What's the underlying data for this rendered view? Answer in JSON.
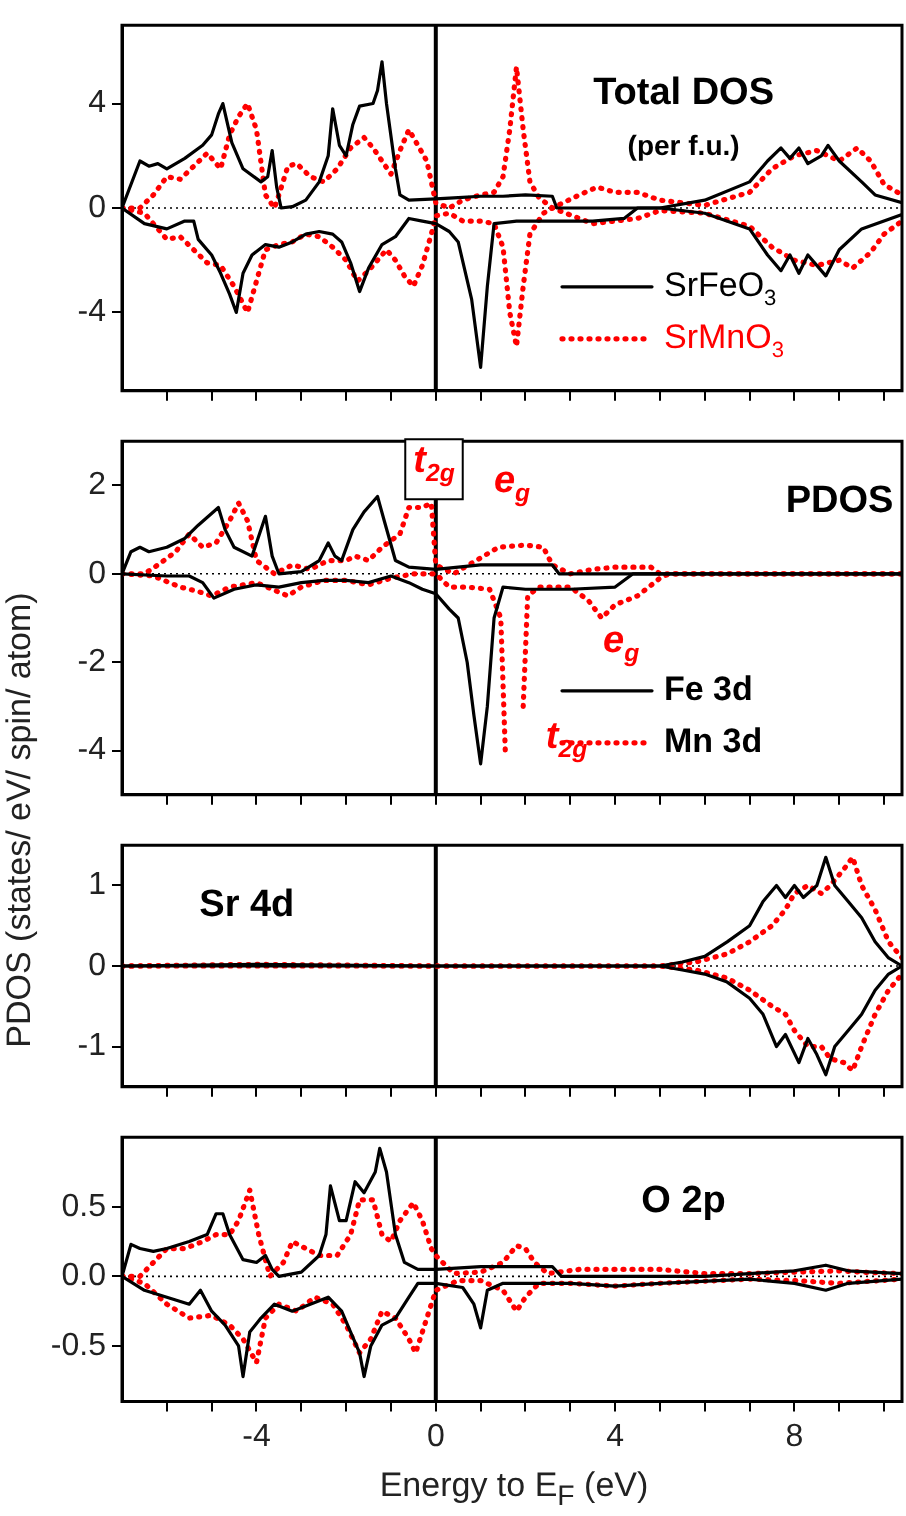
{
  "chart_data": [
    {
      "type": "line",
      "title": "Total DOS",
      "subtitle": "(per f.u.)",
      "xlim": [
        -7,
        10.4
      ],
      "ylim": [
        -7,
        7
      ],
      "yticks": [
        -4,
        0,
        4
      ],
      "xticks": [
        {
          "value": -6,
          "label": null
        },
        {
          "value": -5,
          "label": null
        },
        -4,
        {
          "value": -3,
          "label": null
        },
        {
          "value": -2,
          "label": null
        },
        {
          "value": -1,
          "label": null
        },
        0,
        {
          "value": 1,
          "label": null
        },
        {
          "value": 2,
          "label": null
        },
        {
          "value": 3,
          "label": null
        },
        4,
        {
          "value": 5,
          "label": null
        },
        {
          "value": 6,
          "label": null
        },
        {
          "value": 7,
          "label": null
        },
        8,
        {
          "value": 9,
          "label": null
        },
        {
          "value": 10,
          "label": null
        }
      ],
      "tick_labels": "y",
      "legend": "bottom right",
      "grid": false,
      "ref_lines": [
        {
          "axis": "x",
          "value": 0,
          "color": "#000000",
          "line_style": "solid"
        },
        {
          "axis": "y",
          "value": 0,
          "color": "#000000",
          "line_style": "dotted"
        }
      ],
      "series": [
        {
          "name": "SrFeO$_{3}$",
          "color": "#000000",
          "line_style": "solid",
          "x": [
            -7,
            -6.6,
            -6.4,
            -6.2,
            -6,
            -5.6,
            -5.2,
            -5,
            -4.85,
            -4.75,
            -4.55,
            -4.3,
            -3.9,
            -3.75,
            -3.65,
            -3.55,
            -3.45,
            -3.2,
            -2.9,
            -2.6,
            -2.4,
            -2.3,
            -2.15,
            -2,
            -1.85,
            -1.7,
            -1.4,
            -1.3,
            -1.2,
            -1.1,
            -0.9,
            -0.8,
            -0.6,
            0,
            0.5,
            1,
            1.5,
            2,
            2.6,
            2.7,
            3.5,
            4,
            5,
            6,
            7,
            7.4,
            7.7,
            7.9,
            8.1,
            8.3,
            8.6,
            8.75,
            9,
            9.5,
            9.8,
            10.4
          ],
          "values": [
            0,
            1.8,
            1.6,
            1.7,
            1.5,
            1.9,
            2.4,
            2.8,
            3.6,
            4,
            2.5,
            1.5,
            1,
            1.2,
            2.2,
            0.8,
            0,
            0.05,
            0.3,
            1,
            2,
            3.8,
            2.4,
            2,
            3.2,
            3.9,
            4,
            4.5,
            5.6,
            4,
            1.5,
            0.5,
            0.3,
            0.35,
            0.4,
            0.45,
            0.45,
            0.5,
            0.45,
            0,
            0,
            0,
            0,
            0.3,
            1,
            1.8,
            2.3,
            1.9,
            2.3,
            1.7,
            2,
            2.4,
            1.8,
            1,
            0.5,
            0.2
          ]
        },
        {
          "color": "#000000",
          "line_style": "solid",
          "x": [
            -7,
            -6.5,
            -6,
            -5.6,
            -5.4,
            -5.3,
            -5,
            -4.8,
            -4.6,
            -4.45,
            -4.3,
            -4.1,
            -3.8,
            -3.5,
            -3.2,
            -2.9,
            -2.6,
            -2.3,
            -2.1,
            -1.9,
            -1.7,
            -1.5,
            -1.2,
            -0.9,
            -0.6,
            -0.3,
            0,
            0.3,
            0.5,
            0.8,
            1,
            1.15,
            1.3,
            1.8,
            2.5,
            3.5,
            4.2,
            4.5,
            5,
            6,
            7,
            7.4,
            7.7,
            7.9,
            8.1,
            8.3,
            8.7,
            9,
            9.5,
            10.4
          ],
          "values": [
            0,
            -0.6,
            -0.8,
            -0.5,
            -0.5,
            -1.2,
            -1.8,
            -2.5,
            -3.3,
            -4,
            -2.5,
            -1.8,
            -1.4,
            -1.5,
            -1.3,
            -1,
            -0.9,
            -1,
            -1.3,
            -2.1,
            -3.2,
            -2.3,
            -1.4,
            -1.1,
            -0.4,
            -0.5,
            -0.6,
            -0.9,
            -1.3,
            -3.5,
            -6.1,
            -3,
            -0.6,
            -0.5,
            -0.5,
            -0.5,
            -0.4,
            0,
            0,
            -0.2,
            -0.8,
            -1.8,
            -2.4,
            -1.8,
            -2.5,
            -1.8,
            -2.6,
            -1.6,
            -0.8,
            -0.25
          ]
        },
        {
          "name": "SrMnO$_{3}$",
          "color": "#ff0000",
          "line_style": "dotted",
          "x": [
            -7,
            -6.6,
            -6.3,
            -6,
            -5.7,
            -5.4,
            -5.1,
            -4.8,
            -4.6,
            -4.4,
            -4.2,
            -4,
            -3.8,
            -3.6,
            -3.5,
            -3.3,
            -3.1,
            -2.8,
            -2.5,
            -2.2,
            -1.9,
            -1.6,
            -1.4,
            -1.2,
            -1,
            -0.8,
            -0.6,
            -0.4,
            -0.2,
            0,
            0.3,
            0.6,
            1,
            1.3,
            1.5,
            1.65,
            1.8,
            1.95,
            2.1,
            2.3,
            2.6,
            3.2,
            3.6,
            4,
            4.5,
            5,
            6,
            7,
            7.5,
            8,
            8.5,
            9,
            9.4,
            9.7,
            10,
            10.4
          ],
          "values": [
            0,
            0,
            0.5,
            1.2,
            1.1,
            1.6,
            2.1,
            1.5,
            2.8,
            3.5,
            4,
            3,
            0.5,
            0,
            0.5,
            1.6,
            1.7,
            1.2,
            1,
            1.5,
            2.3,
            2.7,
            2.3,
            1.8,
            1.3,
            2.2,
            3,
            2.4,
            1.8,
            0.2,
            0,
            0.3,
            0.5,
            0.6,
            1.2,
            3,
            5.4,
            3,
            1,
            0.4,
            0,
            0.5,
            0.8,
            0.6,
            0.6,
            0.3,
            0.1,
            0.6,
            1.5,
            2,
            2.2,
            1.8,
            2.3,
            1.8,
            0.9,
            0.5
          ]
        },
        {
          "color": "#ff0000",
          "line_style": "dotted",
          "x": [
            -7,
            -6.5,
            -6,
            -5.7,
            -5.4,
            -5.1,
            -4.8,
            -4.5,
            -4.2,
            -4,
            -3.8,
            -3.5,
            -3.2,
            -2.9,
            -2.6,
            -2.3,
            -2,
            -1.75,
            -1.5,
            -1.3,
            -1.1,
            -0.9,
            -0.7,
            -0.5,
            -0.3,
            -0.1,
            0,
            0.3,
            0.6,
            1,
            1.3,
            1.5,
            1.65,
            1.8,
            1.95,
            2.1,
            2.4,
            2.6,
            3.5,
            4,
            4.5,
            5,
            6,
            7,
            7.5,
            8,
            8.5,
            9,
            9.3,
            9.7,
            10,
            10.4
          ],
          "values": [
            0,
            -0.2,
            -1.2,
            -1.1,
            -1.6,
            -2.1,
            -2.2,
            -3,
            -4,
            -2.8,
            -1.6,
            -1.4,
            -1.3,
            -1,
            -1.1,
            -1.5,
            -2,
            -2.8,
            -2.4,
            -2,
            -1.6,
            -2,
            -2.6,
            -3,
            -2.2,
            -1,
            -0.3,
            -0.2,
            -0.5,
            -0.5,
            -0.6,
            -1.5,
            -4,
            -5.3,
            -3,
            -1,
            -0.2,
            0,
            -0.6,
            -0.5,
            -0.4,
            -0.1,
            -0.2,
            -0.7,
            -1.5,
            -2,
            -2.2,
            -2,
            -2.3,
            -1.7,
            -1,
            -0.5
          ]
        }
      ]
    },
    {
      "type": "line",
      "title": "PDOS",
      "ylabel": "PDOS (states/ eV/ spin/ atom)",
      "xlim": [
        -7,
        10.4
      ],
      "ylim": [
        -5,
        3
      ],
      "yticks": [
        -4,
        -2,
        0,
        2
      ],
      "xticks": [
        {
          "value": -6,
          "label": null
        },
        {
          "value": -5,
          "label": null
        },
        -4,
        {
          "value": -3,
          "label": null
        },
        {
          "value": -2,
          "label": null
        },
        {
          "value": -1,
          "label": null
        },
        0,
        {
          "value": 1,
          "label": null
        },
        {
          "value": 2,
          "label": null
        },
        {
          "value": 3,
          "label": null
        },
        4,
        {
          "value": 5,
          "label": null
        },
        {
          "value": 6,
          "label": null
        },
        {
          "value": 7,
          "label": null
        },
        8,
        {
          "value": 9,
          "label": null
        },
        {
          "value": 10,
          "label": null
        }
      ],
      "tick_labels": "y",
      "legend": "bottom right",
      "grid": false,
      "annotations": [
        "t$_{2g}$",
        "e$_{g}$",
        "e$_{g}$",
        "t$_{2g}$"
      ],
      "ref_lines": [
        {
          "axis": "x",
          "value": 0,
          "color": "#000000",
          "line_style": "solid"
        },
        {
          "axis": "y",
          "value": 0,
          "color": "#000000",
          "line_style": "dotted"
        }
      ],
      "series": [
        {
          "name": "Fe 3d",
          "color": "#000000",
          "line_style": "solid",
          "x": [
            -7,
            -6.8,
            -6.6,
            -6.4,
            -6,
            -5.6,
            -5.3,
            -4.85,
            -4.7,
            -4.5,
            -4.1,
            -3.8,
            -3.65,
            -3.5,
            -3,
            -2.6,
            -2.4,
            -2.25,
            -2.1,
            -1.85,
            -1.6,
            -1.3,
            -1.15,
            -0.9,
            -0.6,
            0,
            1,
            2,
            2.6,
            2.75,
            4,
            10.4
          ],
          "values": [
            0,
            0.5,
            0.6,
            0.5,
            0.6,
            0.8,
            1.1,
            1.5,
            1,
            0.6,
            0.4,
            1.3,
            0.4,
            0,
            0.05,
            0.3,
            0.7,
            0.4,
            0.3,
            1,
            1.4,
            1.75,
            1.2,
            0.3,
            0.15,
            0.1,
            0.2,
            0.2,
            0.2,
            0,
            0,
            0
          ]
        },
        {
          "color": "#000000",
          "line_style": "solid",
          "x": [
            -7,
            -6,
            -5.5,
            -5.2,
            -4.95,
            -4.5,
            -4,
            -3.5,
            -3,
            -2.5,
            -2,
            -1.5,
            -1,
            -0.6,
            -0.3,
            0,
            0.3,
            0.5,
            0.7,
            0.85,
            1,
            1.15,
            1.3,
            1.5,
            2,
            3,
            4,
            4.4,
            10.4
          ],
          "values": [
            0,
            -0.05,
            -0.05,
            -0.2,
            -0.55,
            -0.35,
            -0.25,
            -0.3,
            -0.2,
            -0.15,
            -0.15,
            -0.2,
            -0.05,
            -0.2,
            -0.35,
            -0.45,
            -0.8,
            -1,
            -2,
            -3.2,
            -4.3,
            -3,
            -1,
            -0.3,
            -0.35,
            -0.35,
            -0.3,
            0,
            0
          ]
        },
        {
          "name": "Mn 3d",
          "color": "#ff0000",
          "line_style": "dotted",
          "x": [
            -7,
            -6.5,
            -6.2,
            -5.8,
            -5.5,
            -5.2,
            -4.9,
            -4.6,
            -4.4,
            -4.2,
            -4,
            -3.6,
            -3.2,
            -2.8,
            -2.4,
            -2,
            -1.8,
            -1.5,
            -1.2,
            -0.8,
            -0.6,
            -0.3,
            -0.1,
            0,
            0.4,
            0.9,
            1.4,
            2,
            2.4,
            2.6,
            3,
            3.5,
            4,
            4.8,
            5,
            10.4
          ],
          "values": [
            0,
            0,
            0.2,
            0.5,
            0.9,
            0.6,
            0.7,
            1.2,
            1.6,
            1.2,
            0.3,
            0,
            0.2,
            0.1,
            0.3,
            0.3,
            0.4,
            0.3,
            0.6,
            0.9,
            1.5,
            1.5,
            1.6,
            0.2,
            0,
            0.3,
            0.6,
            0.65,
            0.6,
            0.2,
            0,
            0.1,
            0.15,
            0.15,
            0,
            0
          ]
        },
        {
          "color": "#ff0000",
          "line_style": "dotted",
          "x": [
            -7,
            -6.3,
            -5.7,
            -5.3,
            -5,
            -4.6,
            -4,
            -3.3,
            -3,
            -2.5,
            -2,
            -1.5,
            -1,
            -0.5,
            0,
            0.3,
            0.7,
            1.2,
            1.45,
            1.55,
            1.6,
            1.85,
            1.95,
            2.05,
            2.3,
            3,
            3.4,
            3.7,
            4,
            4.5,
            5,
            5.2,
            10.4
          ],
          "values": [
            0,
            -0.05,
            -0.3,
            -0.4,
            -0.5,
            -0.3,
            -0.2,
            -0.5,
            -0.3,
            -0.15,
            -0.15,
            -0.25,
            -0.1,
            0,
            0,
            -0.3,
            -0.3,
            -0.35,
            -1,
            -4,
            null,
            null,
            -3,
            -0.5,
            -0.3,
            -0.3,
            -0.6,
            -1,
            -0.7,
            -0.5,
            -0.1,
            0,
            0
          ]
        }
      ]
    },
    {
      "type": "line",
      "title": "Sr 4d",
      "xlim": [
        -7,
        10.4
      ],
      "ylim": [
        -1.5,
        1.5
      ],
      "yticks": [
        -1,
        0,
        1
      ],
      "xticks": [
        {
          "value": -6,
          "label": null
        },
        {
          "value": -5,
          "label": null
        },
        -4,
        {
          "value": -3,
          "label": null
        },
        {
          "value": -2,
          "label": null
        },
        {
          "value": -1,
          "label": null
        },
        0,
        {
          "value": 1,
          "label": null
        },
        {
          "value": 2,
          "label": null
        },
        {
          "value": 3,
          "label": null
        },
        4,
        {
          "value": 5,
          "label": null
        },
        {
          "value": 6,
          "label": null
        },
        {
          "value": 7,
          "label": null
        },
        8,
        {
          "value": 9,
          "label": null
        },
        {
          "value": 10,
          "label": null
        }
      ],
      "tick_labels": "y",
      "grid": false,
      "ref_lines": [
        {
          "axis": "x",
          "value": 0,
          "color": "#000000",
          "line_style": "solid"
        },
        {
          "axis": "y",
          "value": 0,
          "color": "#000000",
          "line_style": "dotted"
        }
      ],
      "series": [
        {
          "color": "#000000",
          "line_style": "solid",
          "x": [
            -7,
            -4,
            0,
            5,
            5.5,
            6,
            6.5,
            7,
            7.3,
            7.6,
            7.8,
            8,
            8.2,
            8.5,
            8.7,
            8.9,
            9.2,
            9.5,
            9.8,
            10.1,
            10.4
          ],
          "values": [
            0,
            0.02,
            0,
            0,
            0.05,
            0.12,
            0.3,
            0.5,
            0.8,
            1,
            0.85,
            1,
            0.85,
            1,
            1.35,
            1,
            0.8,
            0.6,
            0.3,
            0.1,
            0
          ]
        },
        {
          "color": "#000000",
          "line_style": "solid",
          "x": [
            -7,
            0,
            5,
            5.5,
            6,
            6.5,
            7,
            7.3,
            7.6,
            7.8,
            8.1,
            8.3,
            8.5,
            8.7,
            8.9,
            9.2,
            9.5,
            9.8,
            10.1,
            10.4
          ],
          "values": [
            0,
            0,
            0,
            -0.05,
            -0.1,
            -0.2,
            -0.4,
            -0.6,
            -1,
            -0.85,
            -1.2,
            -0.9,
            -1.1,
            -1.35,
            -1,
            -0.8,
            -0.6,
            -0.3,
            -0.1,
            0
          ]
        },
        {
          "color": "#ff0000",
          "line_style": "dotted",
          "x": [
            -7,
            -4,
            0,
            5,
            5.8,
            6.5,
            7,
            7.5,
            7.8,
            8,
            8.3,
            8.6,
            8.8,
            9.1,
            9.3,
            9.5,
            9.8,
            10.1,
            10.4
          ],
          "values": [
            0,
            0.02,
            0,
            0,
            0.05,
            0.15,
            0.3,
            0.5,
            0.7,
            0.9,
            1,
            0.9,
            1,
            1.2,
            1.35,
            1,
            0.7,
            0.3,
            0.1
          ]
        },
        {
          "color": "#ff0000",
          "line_style": "dotted",
          "x": [
            -7,
            0,
            5,
            5.8,
            6.5,
            7,
            7.5,
            7.8,
            8,
            8.3,
            8.6,
            8.8,
            9.1,
            9.3,
            9.5,
            9.8,
            10.1,
            10.4
          ],
          "values": [
            0,
            0,
            0,
            -0.05,
            -0.15,
            -0.3,
            -0.5,
            -0.6,
            -0.8,
            -1,
            -1,
            -1.15,
            -1.2,
            -1.3,
            -1,
            -0.6,
            -0.3,
            -0.1
          ]
        }
      ]
    },
    {
      "type": "line",
      "title": "O 2p",
      "xlabel": "Energy to E$_{F}$ (eV)",
      "xlim": [
        -7,
        10.4
      ],
      "ylim": [
        -0.9,
        1
      ],
      "yticks": [
        -0.5,
        {
          "value": 0,
          "label": "0.0"
        },
        0.5
      ],
      "xticks": [
        {
          "value": -6,
          "label": null
        },
        {
          "value": -5,
          "label": null
        },
        -4,
        {
          "value": -3,
          "label": null
        },
        {
          "value": -2,
          "label": null
        },
        {
          "value": -1,
          "label": null
        },
        0,
        {
          "value": 1,
          "label": null
        },
        {
          "value": 2,
          "label": null
        },
        {
          "value": 3,
          "label": null
        },
        4,
        {
          "value": 5,
          "label": null
        },
        {
          "value": 6,
          "label": null
        },
        {
          "value": 7,
          "label": null
        },
        8,
        {
          "value": 9,
          "label": null
        },
        {
          "value": 10,
          "label": null
        }
      ],
      "grid": false,
      "ref_lines": [
        {
          "axis": "x",
          "value": 0,
          "color": "#000000",
          "line_style": "solid"
        },
        {
          "axis": "y",
          "value": 0,
          "color": "#000000",
          "line_style": "dotted"
        }
      ],
      "series": [
        {
          "color": "#000000",
          "line_style": "solid",
          "x": [
            -7,
            -6.8,
            -6.6,
            -6.3,
            -6,
            -5.5,
            -5.1,
            -4.9,
            -4.75,
            -4.6,
            -4.3,
            -4,
            -3.8,
            -3.65,
            -3.5,
            -3,
            -2.6,
            -2.45,
            -2.35,
            -2.15,
            -2,
            -1.8,
            -1.6,
            -1.35,
            -1.25,
            -1.1,
            -0.9,
            -0.7,
            -0.4,
            0,
            1,
            2,
            2.6,
            2.8,
            6,
            7,
            8,
            8.7,
            9.2,
            10.4
          ],
          "values": [
            0,
            0.23,
            0.2,
            0.18,
            0.2,
            0.25,
            0.3,
            0.45,
            0.45,
            0.3,
            0.12,
            0.1,
            0.15,
            0.05,
            0,
            0.03,
            0.15,
            0.3,
            0.65,
            0.4,
            0.4,
            0.68,
            0.6,
            0.75,
            0.92,
            0.75,
            0.3,
            0.1,
            0.05,
            0.05,
            0.07,
            0.07,
            0.07,
            0,
            0,
            0.02,
            0.04,
            0.08,
            0.04,
            0.02
          ]
        },
        {
          "color": "#000000",
          "line_style": "solid",
          "x": [
            -7,
            -6.5,
            -6,
            -5.5,
            -5.25,
            -5,
            -4.7,
            -4.4,
            -4.3,
            -4.15,
            -3.9,
            -3.6,
            -3.2,
            -2.8,
            -2.4,
            -2.1,
            -1.9,
            -1.7,
            -1.6,
            -1.45,
            -1.2,
            -0.9,
            -0.6,
            -0.4,
            0,
            0.6,
            0.85,
            1,
            1.15,
            1.5,
            3,
            4,
            5,
            7,
            8,
            8.7,
            9.2,
            10.4
          ],
          "values": [
            0,
            -0.1,
            -0.15,
            -0.2,
            -0.1,
            -0.25,
            -0.35,
            -0.5,
            -0.72,
            -0.4,
            -0.3,
            -0.2,
            -0.25,
            -0.2,
            -0.15,
            -0.25,
            -0.4,
            -0.55,
            -0.72,
            -0.5,
            -0.35,
            -0.3,
            -0.15,
            -0.05,
            -0.05,
            -0.08,
            -0.2,
            -0.37,
            -0.1,
            -0.05,
            -0.05,
            -0.07,
            -0.05,
            -0.02,
            -0.05,
            -0.1,
            -0.05,
            -0.02
          ]
        },
        {
          "color": "#ff0000",
          "line_style": "dotted",
          "x": [
            -7,
            -6.6,
            -6.3,
            -6,
            -5.6,
            -5.2,
            -4.9,
            -4.6,
            -4.4,
            -4.15,
            -3.95,
            -3.7,
            -3.4,
            -3.2,
            -2.9,
            -2.6,
            -2.2,
            -1.9,
            -1.7,
            -1.4,
            -1.2,
            -1,
            -0.8,
            -0.5,
            -0.3,
            -0.1,
            0,
            0.4,
            1,
            1.5,
            1.8,
            2,
            2.2,
            2.5,
            3.2,
            4,
            5,
            6,
            7,
            8,
            9,
            9.5,
            10.4
          ],
          "values": [
            0,
            0,
            0.1,
            0.2,
            0.2,
            0.25,
            0.3,
            0.3,
            0.4,
            0.62,
            0.3,
            0,
            0.1,
            0.25,
            0.2,
            0.15,
            0.15,
            0.3,
            0.55,
            0.55,
            0.3,
            0.25,
            0.4,
            0.53,
            0.4,
            0.2,
            0.15,
            0.02,
            0.03,
            0.1,
            0.22,
            0.2,
            0.1,
            0.02,
            0.05,
            0.05,
            0.05,
            0.02,
            0.02,
            0.03,
            0.04,
            0.03,
            0.02
          ]
        },
        {
          "color": "#ff0000",
          "line_style": "dotted",
          "x": [
            -7,
            -6.5,
            -6,
            -5.5,
            -5,
            -4.6,
            -4.3,
            -4,
            -3.8,
            -3.5,
            -3.1,
            -2.7,
            -2.3,
            -2,
            -1.7,
            -1.45,
            -1.2,
            -0.9,
            -0.6,
            -0.45,
            -0.2,
            0,
            0.5,
            1,
            1.5,
            1.8,
            2,
            2.3,
            3,
            4,
            5,
            7,
            8,
            9,
            10.4
          ],
          "values": [
            0,
            -0.05,
            -0.2,
            -0.3,
            -0.28,
            -0.35,
            -0.45,
            -0.62,
            -0.3,
            -0.2,
            -0.25,
            -0.15,
            -0.2,
            -0.35,
            -0.55,
            -0.45,
            -0.25,
            -0.3,
            -0.45,
            -0.55,
            -0.3,
            -0.1,
            -0.03,
            -0.03,
            -0.1,
            -0.25,
            -0.15,
            -0.05,
            -0.05,
            -0.07,
            -0.05,
            -0.02,
            -0.03,
            -0.05,
            -0.02
          ]
        }
      ]
    }
  ]
}
